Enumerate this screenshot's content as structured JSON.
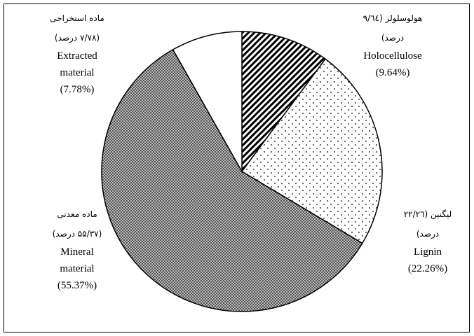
{
  "chart_data": {
    "type": "pie",
    "categories": [
      "Holocellulose",
      "Lignin",
      "Mineral material",
      "Extracted material"
    ],
    "values": [
      9.64,
      22.26,
      55.37,
      7.78
    ],
    "value_labels": [
      "(9.64%)",
      "(22.26%)",
      "(55.37%)",
      "(7.78%)"
    ],
    "labels_fa": [
      [
        "هولوسلولز (۹/٦٤",
        "درصد)"
      ],
      [
        "لیگنین (۲۲/۲٦",
        "درصد)"
      ],
      [
        "ماده معدنی",
        "(۵۵/۳۷ درصد)"
      ],
      [
        "ماده استخراجی",
        "(۷/۷۸ درصد)"
      ]
    ],
    "patterns": [
      "hatch",
      "dots",
      "crosshatch",
      "none"
    ]
  }
}
